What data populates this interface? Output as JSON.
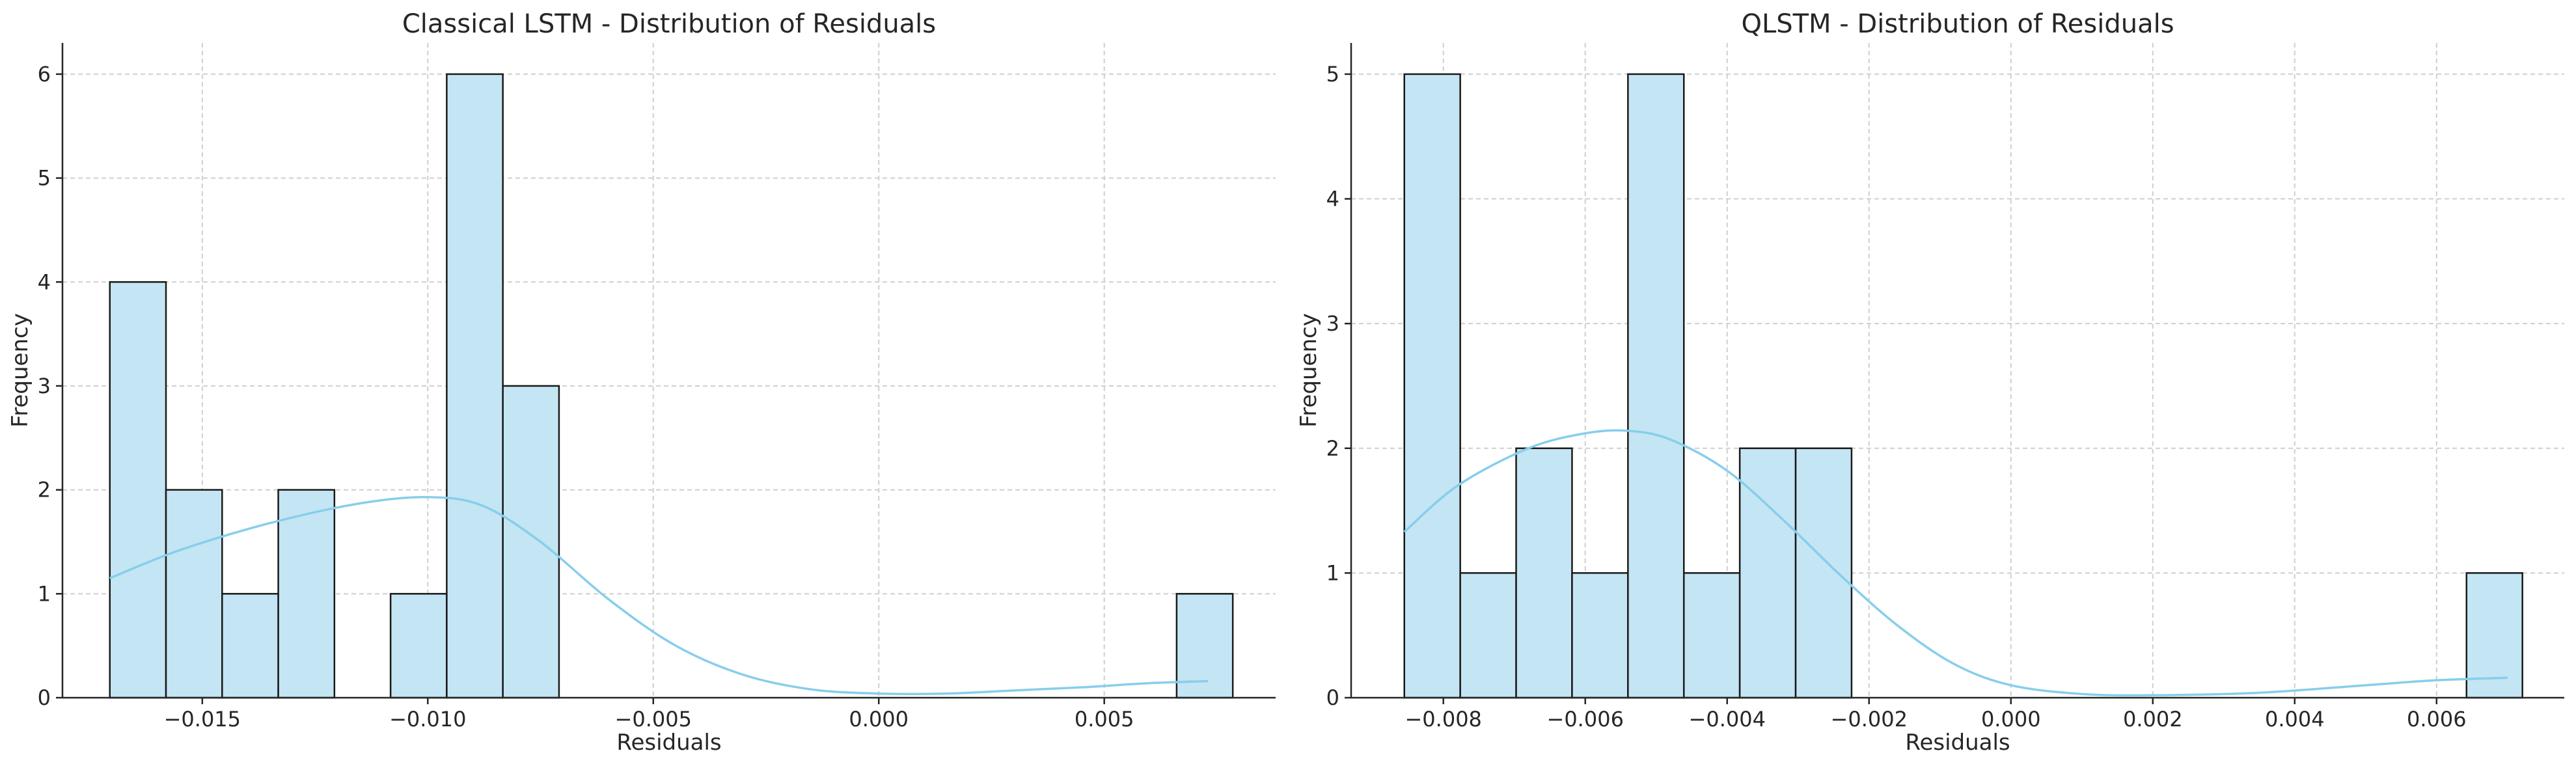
{
  "chart_data": [
    {
      "type": "bar",
      "subtype": "histogram-with-kde",
      "title": "Classical LSTM - Distribution of Residuals",
      "xlabel": "Residuals",
      "ylabel": "Frequency",
      "xlim": [
        -0.0181,
        0.0088
      ],
      "ylim": [
        0,
        6.3
      ],
      "xticks": [
        -0.015,
        -0.01,
        -0.005,
        0.0,
        0.005
      ],
      "xtick_labels": [
        "−0.015",
        "−0.010",
        "−0.005",
        "0.000",
        "0.005"
      ],
      "yticks": [
        0,
        1,
        2,
        3,
        4,
        5,
        6
      ],
      "ytick_labels": [
        "0",
        "1",
        "2",
        "3",
        "4",
        "5",
        "6"
      ],
      "bin_start": -0.01705,
      "bin_width": 0.001245,
      "counts": [
        4,
        2,
        1,
        2,
        0,
        1,
        6,
        3,
        0,
        0,
        0,
        0,
        0,
        0,
        0,
        0,
        0,
        0,
        0,
        1
      ],
      "kde": {
        "x": [
          -0.01705,
          -0.0155,
          -0.0135,
          -0.0115,
          -0.01,
          -0.0088,
          -0.0075,
          -0.006,
          -0.0045,
          -0.003,
          -0.0015,
          0.0,
          0.0015,
          0.003,
          0.0045,
          0.006,
          0.0073
        ],
        "y": [
          1.15,
          1.42,
          1.68,
          1.87,
          1.93,
          1.85,
          1.5,
          0.95,
          0.5,
          0.22,
          0.08,
          0.04,
          0.04,
          0.07,
          0.1,
          0.14,
          0.16
        ]
      },
      "grid": true,
      "bar_fill": "#c4e5f3",
      "bar_edge": "#1a1a1a",
      "kde_color": "#87ceeb"
    },
    {
      "type": "bar",
      "subtype": "histogram-with-kde",
      "title": "QLSTM - Distribution of Residuals",
      "xlabel": "Residuals",
      "ylabel": "Frequency",
      "xlim": [
        -0.0093,
        0.0078
      ],
      "ylim": [
        0,
        5.25
      ],
      "xticks": [
        -0.008,
        -0.006,
        -0.004,
        -0.002,
        0.0,
        0.002,
        0.004,
        0.006
      ],
      "xtick_labels": [
        "−0.008",
        "−0.006",
        "−0.004",
        "−0.002",
        "0.000",
        "0.002",
        "0.004",
        "0.006"
      ],
      "yticks": [
        0,
        1,
        2,
        3,
        4,
        5
      ],
      "ytick_labels": [
        "0",
        "1",
        "2",
        "3",
        "4",
        "5"
      ],
      "bin_start": -0.00855,
      "bin_width": 0.000788,
      "counts": [
        5,
        1,
        2,
        1,
        5,
        1,
        2,
        2,
        0,
        0,
        0,
        0,
        0,
        0,
        0,
        0,
        0,
        0,
        0,
        1
      ],
      "kde": {
        "x": [
          -0.00855,
          -0.0078,
          -0.0068,
          -0.006,
          -0.0054,
          -0.0048,
          -0.004,
          -0.0032,
          -0.0024,
          -0.0016,
          -0.0008,
          0.0,
          0.001,
          0.002,
          0.0035,
          0.005,
          0.006,
          0.007
        ],
        "y": [
          1.33,
          1.7,
          2.0,
          2.12,
          2.14,
          2.07,
          1.82,
          1.42,
          0.98,
          0.58,
          0.27,
          0.1,
          0.03,
          0.02,
          0.04,
          0.1,
          0.14,
          0.16
        ]
      },
      "grid": true,
      "bar_fill": "#c4e5f3",
      "bar_edge": "#1a1a1a",
      "kde_color": "#87ceeb"
    }
  ]
}
